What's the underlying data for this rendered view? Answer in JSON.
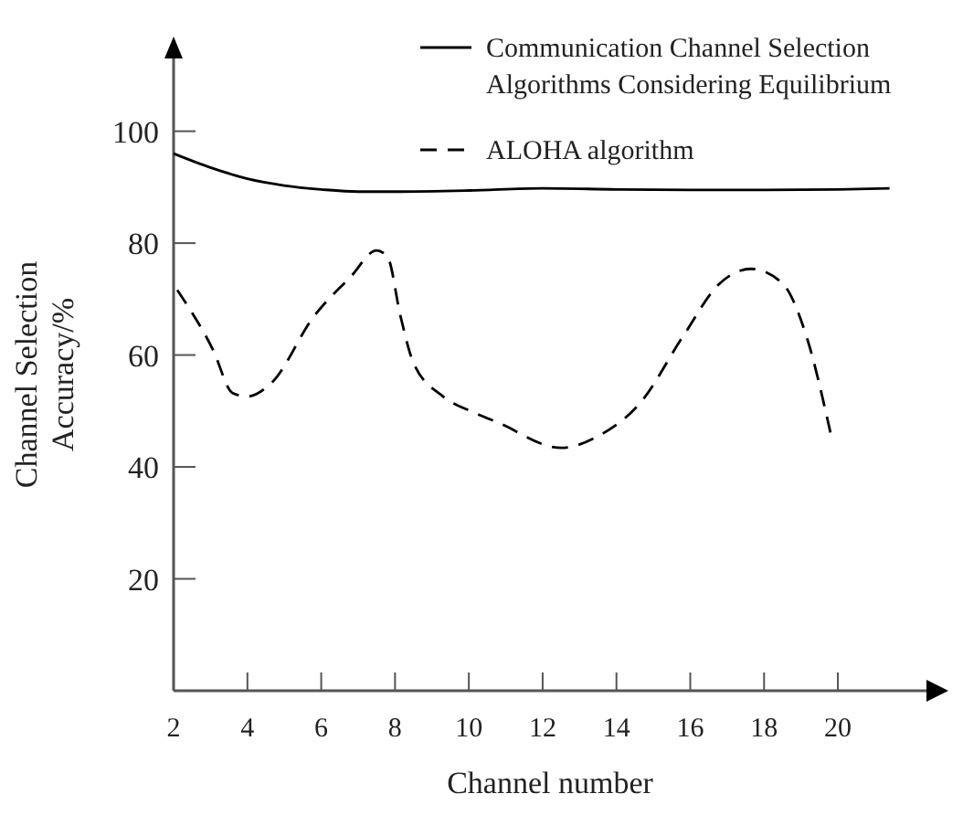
{
  "chart_data": {
    "type": "line",
    "xlabel": "Channel number",
    "ylabel": "Channel Selection\nAccuracy/%",
    "xlim": [
      2,
      22.4
    ],
    "ylim": [
      0,
      113
    ],
    "xticks": [
      2,
      4,
      6,
      8,
      10,
      12,
      14,
      16,
      18,
      20
    ],
    "yticks": [
      20,
      40,
      60,
      80,
      100
    ],
    "grid": false,
    "legend": "top right",
    "series": [
      {
        "name": "Communication Channel Selection\nAlgorithms Considering Equilibrium",
        "color": "#000000",
        "line_style": "solid",
        "x": [
          2,
          3,
          4,
          5,
          6,
          7,
          8,
          10,
          12,
          14,
          16,
          18,
          20,
          21.4
        ],
        "values": [
          96,
          93.5,
          91.5,
          90.3,
          89.6,
          89.2,
          89.2,
          89.4,
          89.8,
          89.6,
          89.5,
          89.5,
          89.6,
          89.8
        ]
      },
      {
        "name": "ALOHA algorithm",
        "color": "#000000",
        "line_style": "dashed",
        "x": [
          2.1,
          3.07,
          3.6,
          4,
          4.65,
          5.8,
          6.8,
          7.5,
          7.8,
          8.15,
          8.5,
          9.3,
          10.15,
          10.8,
          12.5,
          13.5,
          14.65,
          15.8,
          16.8,
          17.65,
          18.5,
          19.15,
          19.8
        ],
        "values": [
          71.6,
          60.9,
          53.2,
          52.6,
          55,
          66.9,
          74,
          78.7,
          77.5,
          66.9,
          58.6,
          52.6,
          49.7,
          47.9,
          43.4,
          45.5,
          51.5,
          63.3,
          72.8,
          75.4,
          72.8,
          63.3,
          46.1
        ]
      }
    ]
  }
}
